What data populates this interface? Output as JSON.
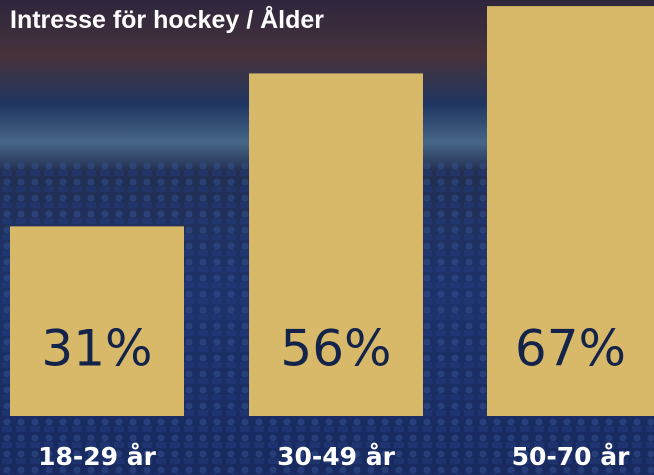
{
  "chart_data": {
    "type": "bar",
    "title": "Intresse för hockey / Ålder",
    "categories": [
      "18-29 år",
      "30-49 år",
      "50-70 år"
    ],
    "values": [
      31,
      56,
      67
    ],
    "value_labels": [
      "31%",
      "56%",
      "67%"
    ],
    "color": "#d8b96a",
    "ylim": [
      0,
      68
    ]
  }
}
